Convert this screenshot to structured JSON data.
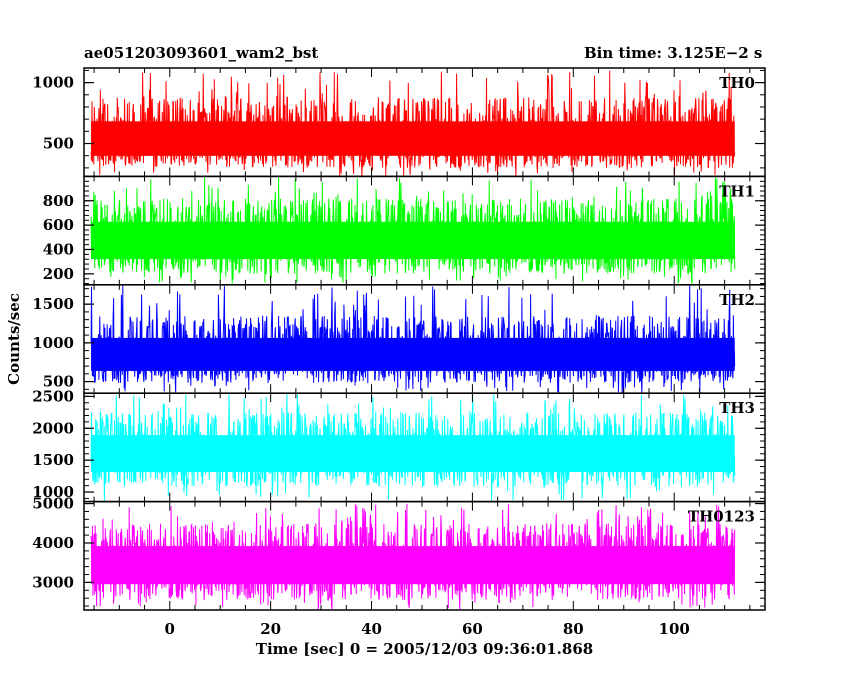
{
  "chart_data": {
    "type": "line",
    "title_left": "ae051203093601_wam2_bst",
    "title_right": "Bin time: 3.125E−2 s",
    "xlabel": "Time [sec] 0 = 2005/12/03 09:36:01.868",
    "ylabel": "Counts/sec",
    "xlim": [
      -17,
      118
    ],
    "x_data_range": [
      -15.6,
      112.0
    ],
    "x_ticks": [
      0,
      20,
      40,
      60,
      80,
      100
    ],
    "x_tick_labels": [
      "0",
      "20",
      "40",
      "60",
      "80",
      "100"
    ],
    "panels": [
      {
        "name": "TH0",
        "color": "#ff0000",
        "ylim": [
          230,
          1120
        ],
        "y_ticks": [
          500,
          1000
        ],
        "y_tick_labels": [
          "500",
          "1000"
        ],
        "mean": 520,
        "low": 300,
        "high": 880,
        "spike_max": 1100
      },
      {
        "name": "TH1",
        "color": "#00ff00",
        "ylim": [
          110,
          1000
        ],
        "y_ticks": [
          200,
          400,
          600,
          800
        ],
        "y_tick_labels": [
          "200",
          "400",
          "600",
          "800"
        ],
        "mean": 470,
        "low": 200,
        "high": 820,
        "spike_max": 1000
      },
      {
        "name": "TH2",
        "color": "#0000ff",
        "ylim": [
          350,
          1750
        ],
        "y_ticks": [
          500,
          1000,
          1500
        ],
        "y_tick_labels": [
          "500",
          "1000",
          "1500"
        ],
        "mean": 830,
        "low": 480,
        "high": 1350,
        "spike_max": 1750
      },
      {
        "name": "TH3",
        "color": "#00ffff",
        "ylim": [
          850,
          2550
        ],
        "y_ticks": [
          1000,
          1500,
          2000,
          2500
        ],
        "y_tick_labels": [
          "1000",
          "1500",
          "2000",
          "2500"
        ],
        "mean": 1600,
        "low": 1080,
        "high": 2250,
        "spike_max": 2550
      },
      {
        "name": "TH0123",
        "color": "#ff00ff",
        "ylim": [
          2300,
          5050
        ],
        "y_ticks": [
          3000,
          4000,
          5000
        ],
        "y_tick_labels": [
          "3000",
          "4000",
          "5000"
        ],
        "mean": 3450,
        "low": 2550,
        "high": 4500,
        "spike_max": 5000
      }
    ],
    "grid": false,
    "legend": "none"
  }
}
